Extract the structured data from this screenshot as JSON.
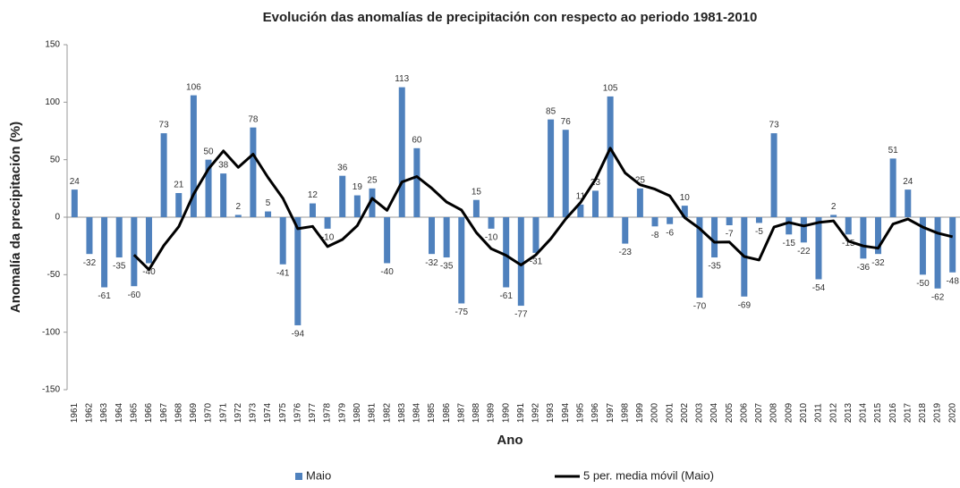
{
  "chart_data": {
    "type": "bar",
    "title": "Evolución das anomalías de precipitación con respecto ao periodo 1981-2010",
    "x_label": "Ano",
    "y_label": "Anomalía da precipitación (%)",
    "categories": [
      "1961",
      "1962",
      "1963",
      "1964",
      "1965",
      "1966",
      "1967",
      "1968",
      "1969",
      "1970",
      "1971",
      "1972",
      "1973",
      "1974",
      "1975",
      "1976",
      "1977",
      "1978",
      "1979",
      "1980",
      "1981",
      "1982",
      "1983",
      "1984",
      "1985",
      "1986",
      "1987",
      "1988",
      "1989",
      "1990",
      "1991",
      "1992",
      "1993",
      "1994",
      "1995",
      "1996",
      "1997",
      "1998",
      "1999",
      "2000",
      "2001",
      "2002",
      "2003",
      "2004",
      "2005",
      "2006",
      "2007",
      "2008",
      "2009",
      "2010",
      "2011",
      "2012",
      "2013",
      "2014",
      "2015",
      "2016",
      "2017",
      "2018",
      "2019",
      "2020"
    ],
    "series": [
      {
        "name": "Maio",
        "type": "bar",
        "color": "#4f81bd",
        "values": [
          24,
          -32,
          -61,
          -35,
          -60,
          -40,
          73,
          21,
          106,
          50,
          38,
          2,
          78,
          5,
          -41,
          -94,
          12,
          -10,
          36,
          19,
          25,
          -40,
          113,
          60,
          -32,
          -35,
          -75,
          15,
          -10,
          -61,
          -77,
          -31,
          85,
          76,
          11,
          23,
          105,
          -23,
          25,
          -8,
          -6,
          10,
          -70,
          -35,
          -7,
          -69,
          -5,
          73,
          -15,
          -22,
          -54,
          2,
          -15,
          -36,
          -32,
          51,
          24,
          -50,
          -62,
          -48
        ]
      },
      {
        "name": "5 per. media móvil (Maio)",
        "type": "line",
        "color": "#000000",
        "values": [
          null,
          null,
          null,
          null,
          -32.8,
          -45.6,
          -24.6,
          -8.2,
          20,
          42,
          57.6,
          43.4,
          54.8,
          34.6,
          16.4,
          -10,
          -8,
          -25.6,
          -19.4,
          -7.4,
          16.4,
          6,
          30.6,
          35.4,
          25.2,
          13.2,
          6.2,
          -13.4,
          -27.4,
          -33.2,
          -41.6,
          -32.8,
          -18.8,
          -1.6,
          12.8,
          32.8,
          60,
          38.4,
          28.2,
          24.4,
          18.6,
          -0.4,
          -9.8,
          -21.8,
          -21.6,
          -34.2,
          -37.2,
          -8.6,
          -4.6,
          -7.6,
          -4.6,
          -3.2,
          -20.8,
          -25,
          -27,
          -6,
          -1.6,
          -8.6,
          -13.8,
          -17
        ]
      }
    ],
    "ylim": [
      -150,
      150
    ],
    "yticks": [
      -150,
      -100,
      -50,
      0,
      50,
      100,
      150
    ],
    "legend": "bottom"
  }
}
